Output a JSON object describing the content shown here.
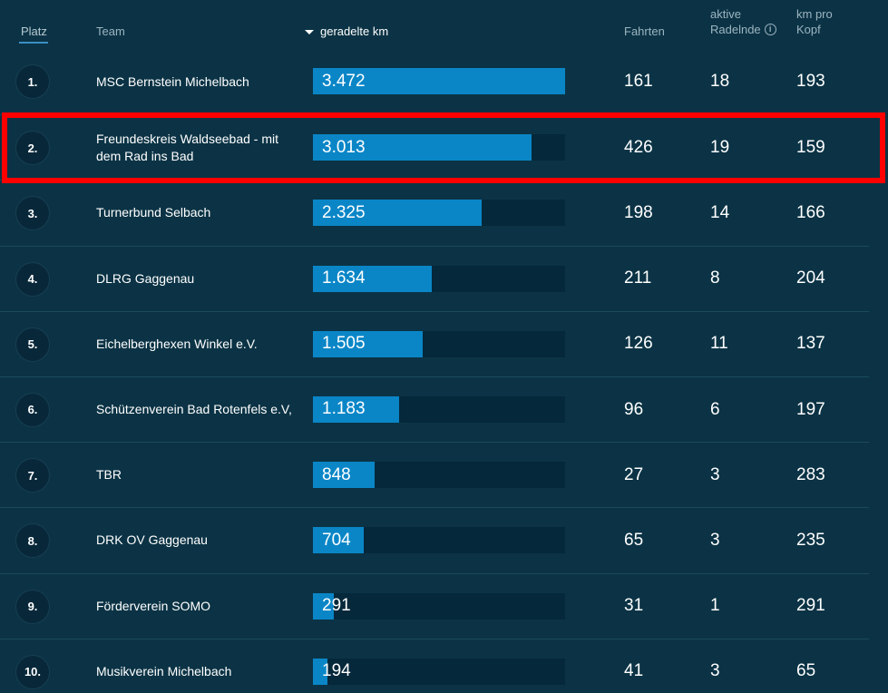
{
  "header": {
    "platz": "Platz",
    "team": "Team",
    "km": "geradelte km",
    "fahrten": "Fahrten",
    "aktive_line1": "aktive",
    "aktive_line2": "Radelnde",
    "info_glyph": "i",
    "kmpro_line1": "km pro",
    "kmpro_line2": "Kopf"
  },
  "max_km": 3472,
  "rows": [
    {
      "rank": "1.",
      "team": "MSC Bernstein Michelbach",
      "km_label": "3.472",
      "km": 3472,
      "fahrten": "161",
      "aktive": "18",
      "kmpro": "193"
    },
    {
      "rank": "2.",
      "team": "Freundeskreis Waldseebad - mit dem Rad ins Bad",
      "km_label": "3.013",
      "km": 3013,
      "fahrten": "426",
      "aktive": "19",
      "kmpro": "159"
    },
    {
      "rank": "3.",
      "team": "Turnerbund Selbach",
      "km_label": "2.325",
      "km": 2325,
      "fahrten": "198",
      "aktive": "14",
      "kmpro": "166"
    },
    {
      "rank": "4.",
      "team": "DLRG Gaggenau",
      "km_label": "1.634",
      "km": 1634,
      "fahrten": "211",
      "aktive": "8",
      "kmpro": "204"
    },
    {
      "rank": "5.",
      "team": "Eichelberghexen Winkel e.V.",
      "km_label": "1.505",
      "km": 1505,
      "fahrten": "126",
      "aktive": "11",
      "kmpro": "137"
    },
    {
      "rank": "6.",
      "team": "Schützenverein Bad Rotenfels e.V,",
      "km_label": "1.183",
      "km": 1183,
      "fahrten": "96",
      "aktive": "6",
      "kmpro": "197"
    },
    {
      "rank": "7.",
      "team": "TBR",
      "km_label": "848",
      "km": 848,
      "fahrten": "27",
      "aktive": "3",
      "kmpro": "283"
    },
    {
      "rank": "8.",
      "team": "DRK OV Gaggenau",
      "km_label": "704",
      "km": 704,
      "fahrten": "65",
      "aktive": "3",
      "kmpro": "235"
    },
    {
      "rank": "9.",
      "team": "Förderverein SOMO",
      "km_label": "291",
      "km": 291,
      "fahrten": "31",
      "aktive": "1",
      "kmpro": "291"
    },
    {
      "rank": "10.",
      "team": "Musikverein Michelbach",
      "km_label": "194",
      "km": 194,
      "fahrten": "41",
      "aktive": "3",
      "kmpro": "65"
    }
  ],
  "colors": {
    "background": "#0b3345",
    "bar_fill": "#0a86c7",
    "bar_track": "#05283b",
    "highlight": "#ff0000"
  }
}
